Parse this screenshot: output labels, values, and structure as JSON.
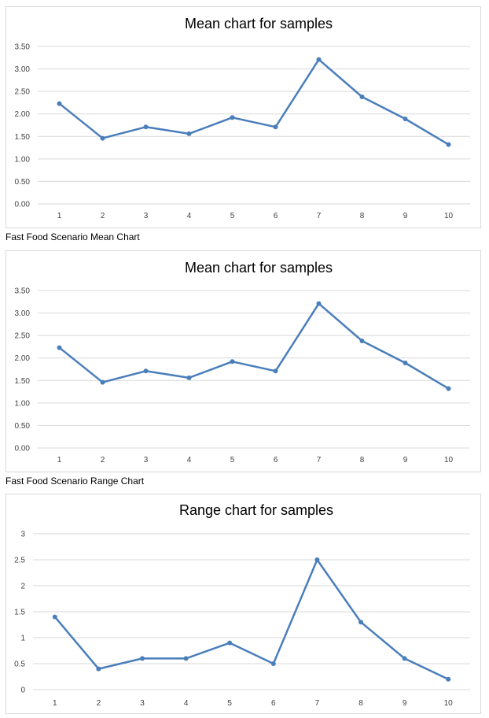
{
  "captions": [
    "Fast Food Scenario Mean Chart",
    "Fast Food Scenario Range Chart"
  ],
  "colors": {
    "line": "#4a7ebb",
    "grid": "#d9d9d9",
    "border": "#d9d9d9"
  },
  "chart_data": [
    {
      "type": "line",
      "title": "Mean chart for samples",
      "xlabel": "",
      "ylabel": "",
      "categories": [
        "1",
        "2",
        "3",
        "4",
        "5",
        "6",
        "7",
        "8",
        "9",
        "10"
      ],
      "series": [
        {
          "values": [
            2.23,
            1.46,
            1.71,
            1.56,
            1.92,
            1.71,
            3.21,
            2.38,
            1.89,
            1.32
          ]
        }
      ],
      "ylim": [
        0,
        3.5
      ],
      "yticks": [
        "0.00",
        "0.50",
        "1.00",
        "1.50",
        "2.00",
        "2.50",
        "3.00",
        "3.50"
      ],
      "grid": true,
      "legend": "none"
    },
    {
      "type": "line",
      "title": "Mean chart for samples",
      "xlabel": "",
      "ylabel": "",
      "categories": [
        "1",
        "2",
        "3",
        "4",
        "5",
        "6",
        "7",
        "8",
        "9",
        "10"
      ],
      "series": [
        {
          "values": [
            2.23,
            1.46,
            1.71,
            1.56,
            1.92,
            1.71,
            3.21,
            2.38,
            1.89,
            1.32
          ]
        }
      ],
      "ylim": [
        0,
        3.5
      ],
      "yticks": [
        "0.00",
        "0.50",
        "1.00",
        "1.50",
        "2.00",
        "2.50",
        "3.00",
        "3.50"
      ],
      "grid": true,
      "legend": "none"
    },
    {
      "type": "line",
      "title": "Range chart for samples",
      "xlabel": "",
      "ylabel": "",
      "categories": [
        "1",
        "2",
        "3",
        "4",
        "5",
        "6",
        "7",
        "8",
        "9",
        "10"
      ],
      "series": [
        {
          "values": [
            1.4,
            0.4,
            0.6,
            0.6,
            0.9,
            0.5,
            2.5,
            1.3,
            0.6,
            0.2
          ]
        }
      ],
      "ylim": [
        0,
        3
      ],
      "yticks": [
        "0",
        "0.5",
        "1",
        "1.5",
        "2",
        "2.5",
        "3"
      ],
      "grid": true,
      "legend": "none"
    }
  ]
}
